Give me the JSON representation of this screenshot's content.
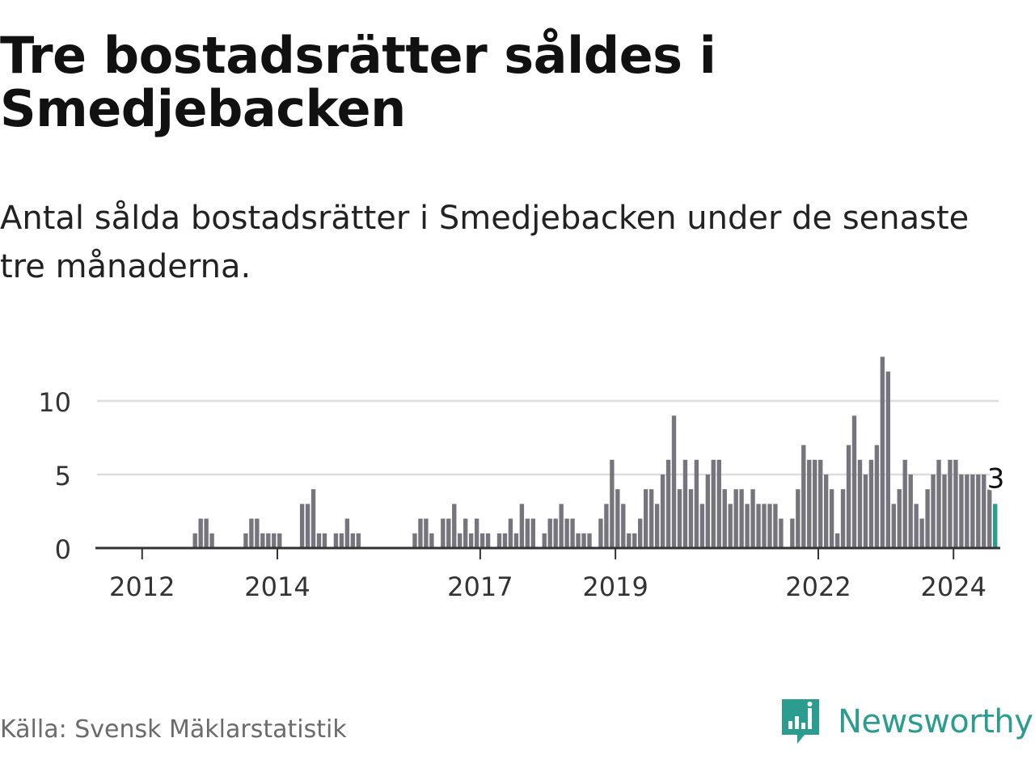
{
  "title": "Tre bostadsrätter såldes i Smedjebacken",
  "subtitle": "Antal sålda bostadsrätter i Smedjebacken under de senaste tre månaderna.",
  "source": "Källa: Svensk Mäklarstatistik",
  "brand": {
    "name": "Newsworthy",
    "color": "#2a9d8f"
  },
  "colors": {
    "bar": "#76757d",
    "highlight": "#2a9d8f",
    "grid": "#dddddd",
    "axis": "#333333"
  },
  "chart_data": {
    "type": "bar",
    "title": "Tre bostadsrätter såldes i Smedjebacken",
    "xlabel": "",
    "ylabel": "",
    "ylim": [
      0,
      13
    ],
    "yticks": [
      0,
      5,
      10
    ],
    "xticks": [
      "2012",
      "2014",
      "2017",
      "2019",
      "2022",
      "2024"
    ],
    "xtick_positions": [
      2012,
      2014,
      2017,
      2019,
      2022,
      2024
    ],
    "x_start": 2011.333,
    "x_end": 2024.667,
    "months_per_bar": 1,
    "last_label": "3",
    "series": [
      {
        "name": "Antal sålda bostadsrätter",
        "values": [
          0,
          0,
          0,
          0,
          0,
          0,
          0,
          0,
          0,
          0,
          1,
          2,
          2,
          1,
          0,
          0,
          0,
          0,
          0,
          1,
          2,
          2,
          1,
          1,
          1,
          1,
          0,
          0,
          0,
          3,
          3,
          4,
          1,
          1,
          0,
          1,
          1,
          2,
          1,
          1,
          0,
          0,
          0,
          0,
          0,
          0,
          0,
          0,
          0,
          1,
          2,
          2,
          1,
          0,
          2,
          2,
          3,
          1,
          2,
          1,
          2,
          1,
          1,
          0,
          1,
          1,
          2,
          1,
          3,
          2,
          2,
          0,
          1,
          2,
          2,
          3,
          2,
          2,
          1,
          1,
          1,
          0,
          2,
          3,
          6,
          4,
          3,
          1,
          1,
          2,
          4,
          4,
          3,
          5,
          6,
          9,
          4,
          6,
          4,
          6,
          3,
          5,
          6,
          6,
          4,
          3,
          4,
          4,
          3,
          4,
          3,
          3,
          3,
          3,
          2,
          0,
          2,
          4,
          7,
          6,
          6,
          6,
          5,
          4,
          1,
          4,
          7,
          9,
          6,
          5,
          6,
          7,
          13,
          12,
          3,
          4,
          6,
          5,
          3,
          2,
          4,
          5,
          6,
          5,
          6,
          6,
          5,
          5,
          5,
          5,
          5,
          4,
          3
        ]
      }
    ]
  }
}
